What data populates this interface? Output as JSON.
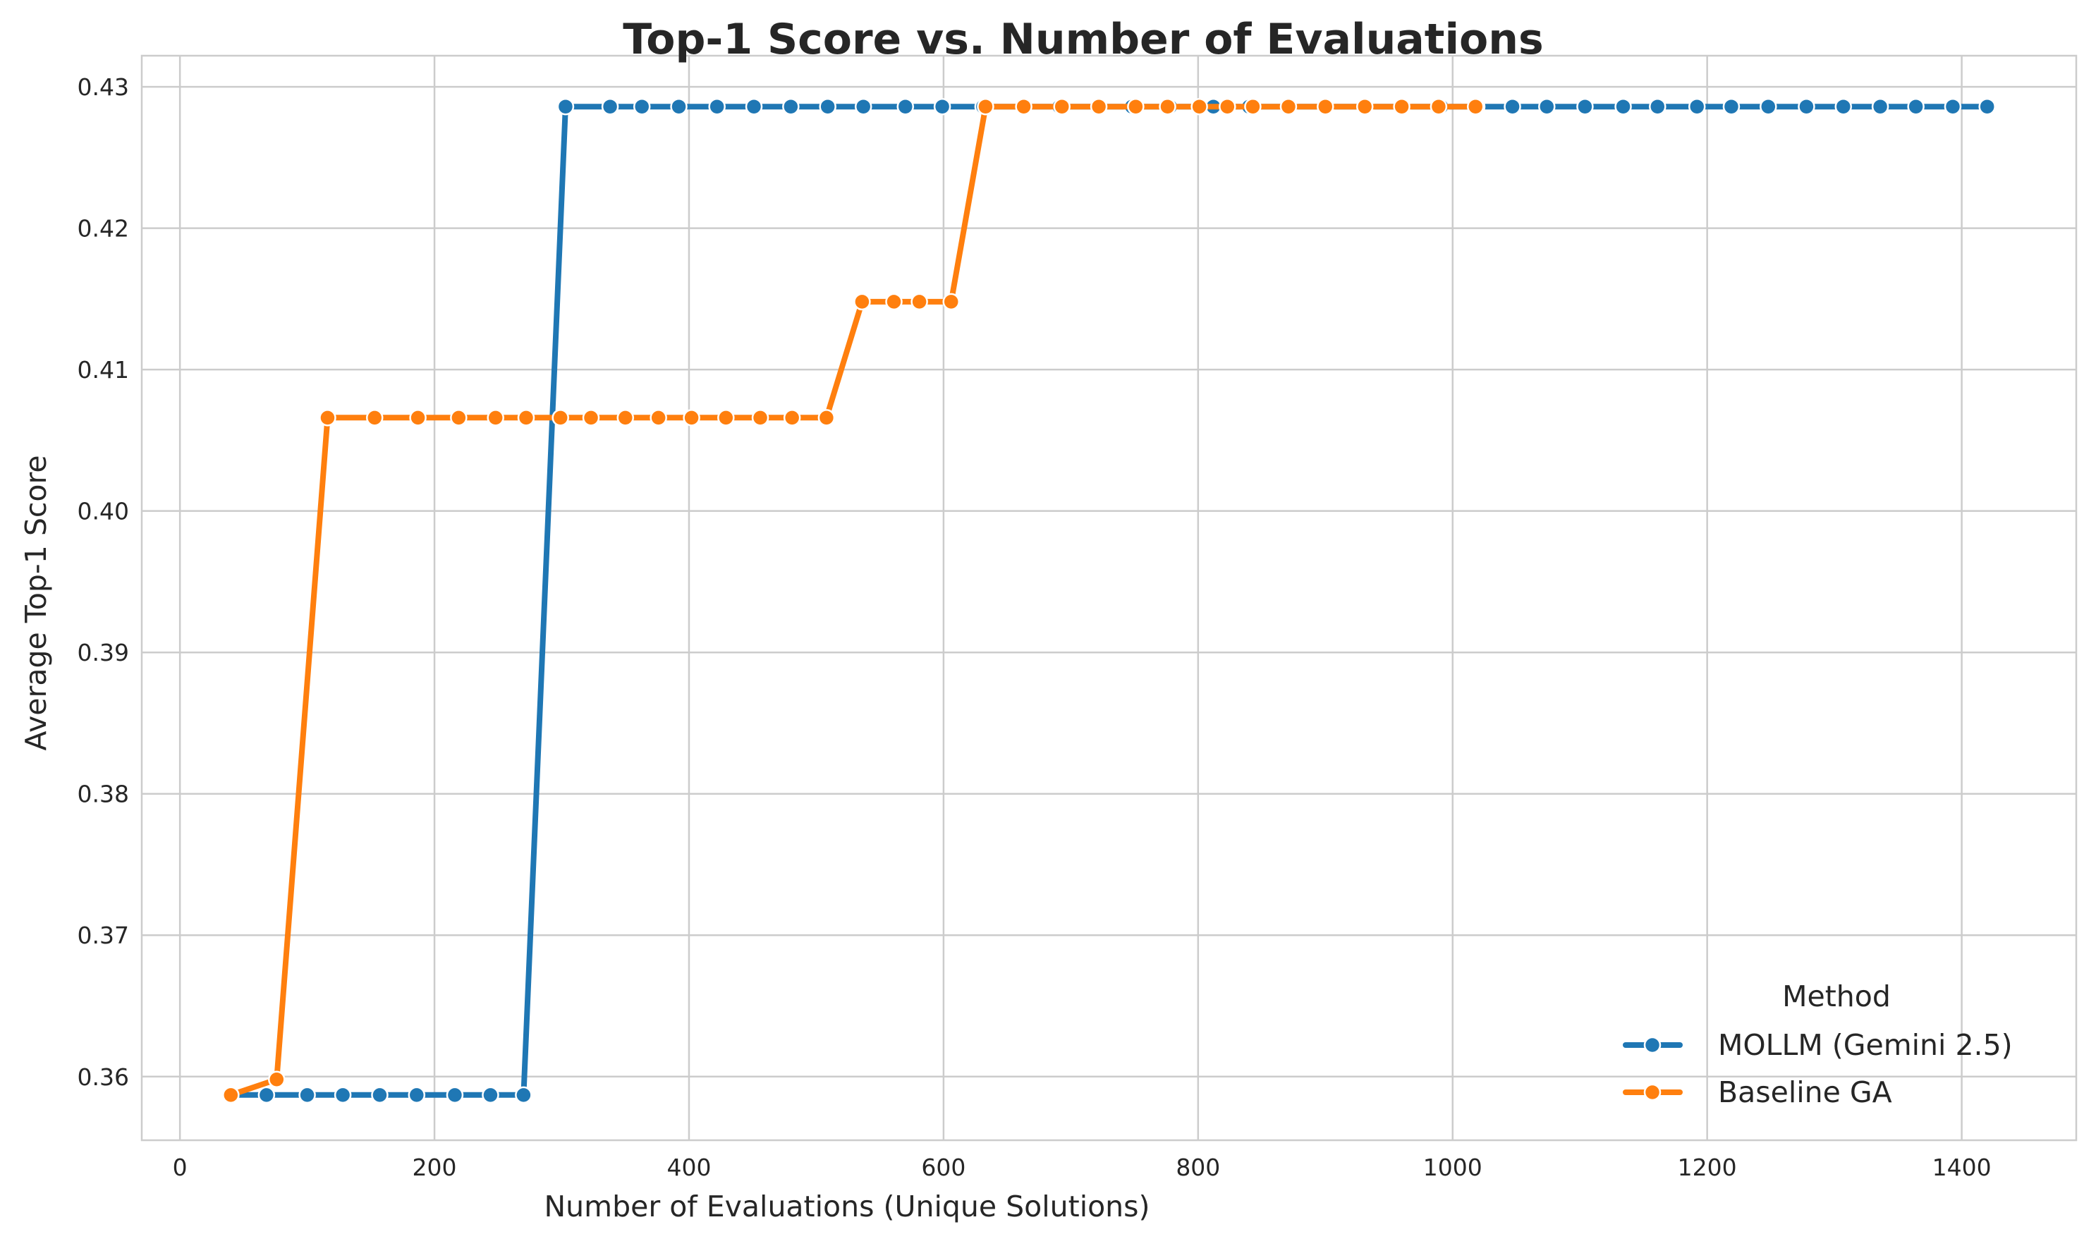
{
  "chart_data": {
    "type": "line",
    "title": "Top-1 Score vs. Number of Evaluations",
    "xlabel": "Number of Evaluations (Unique Solutions)",
    "ylabel": "Average Top-1 Score",
    "xlim": [
      -30,
      1490
    ],
    "ylim": [
      0.3555,
      0.4322
    ],
    "xticks": [
      "0",
      "200",
      "400",
      "600",
      "800",
      "1000",
      "1200",
      "1400"
    ],
    "xtick_values": [
      0,
      200,
      400,
      600,
      800,
      1000,
      1200,
      1400
    ],
    "yticks": [
      "0.36",
      "0.37",
      "0.38",
      "0.39",
      "0.40",
      "0.41",
      "0.42",
      "0.43"
    ],
    "ytick_values": [
      0.36,
      0.37,
      0.38,
      0.39,
      0.4,
      0.41,
      0.42,
      0.43
    ],
    "grid": true,
    "legend": {
      "title": "Method",
      "placement": "bottom-right"
    },
    "series": [
      {
        "name": "MOLLM (Gemini 2.5)",
        "color": "#1f77b4",
        "x": [
          40,
          68,
          100,
          128,
          157,
          186,
          216,
          244,
          270,
          303,
          338,
          363,
          392,
          422,
          451,
          480,
          509,
          537,
          570,
          599,
          631,
          663,
          691,
          722,
          748,
          778,
          812,
          840,
          872,
          901,
          932,
          961,
          991,
          1019,
          1047,
          1074,
          1104,
          1134,
          1161,
          1192,
          1219,
          1248,
          1278,
          1307,
          1336,
          1364,
          1393,
          1420
        ],
        "y": [
          0.3587,
          0.3587,
          0.3587,
          0.3587,
          0.3587,
          0.3587,
          0.3587,
          0.3587,
          0.3587,
          0.4286,
          0.4286,
          0.4286,
          0.4286,
          0.4286,
          0.4286,
          0.4286,
          0.4286,
          0.4286,
          0.4286,
          0.4286,
          0.4286,
          0.4286,
          0.4286,
          0.4286,
          0.4286,
          0.4286,
          0.4286,
          0.4286,
          0.4286,
          0.4286,
          0.4286,
          0.4286,
          0.4286,
          0.4286,
          0.4286,
          0.4286,
          0.4286,
          0.4286,
          0.4286,
          0.4286,
          0.4286,
          0.4286,
          0.4286,
          0.4286,
          0.4286,
          0.4286,
          0.4286,
          0.4286
        ]
      },
      {
        "name": "Baseline GA",
        "color": "#ff7f0e",
        "x": [
          40,
          76,
          116,
          153,
          187,
          219,
          248,
          272,
          299,
          323,
          350,
          376,
          402,
          429,
          456,
          481,
          508,
          536,
          561,
          581,
          606,
          633,
          663,
          693,
          722,
          751,
          776,
          801,
          823,
          843,
          871,
          900,
          931,
          960,
          989,
          1018
        ],
        "y": [
          0.3587,
          0.3598,
          0.4066,
          0.4066,
          0.4066,
          0.4066,
          0.4066,
          0.4066,
          0.4066,
          0.4066,
          0.4066,
          0.4066,
          0.4066,
          0.4066,
          0.4066,
          0.4066,
          0.4066,
          0.4148,
          0.4148,
          0.4148,
          0.4148,
          0.4286,
          0.4286,
          0.4286,
          0.4286,
          0.4286,
          0.4286,
          0.4286,
          0.4286,
          0.4286,
          0.4286,
          0.4286,
          0.4286,
          0.4286,
          0.4286,
          0.4286
        ]
      }
    ]
  }
}
